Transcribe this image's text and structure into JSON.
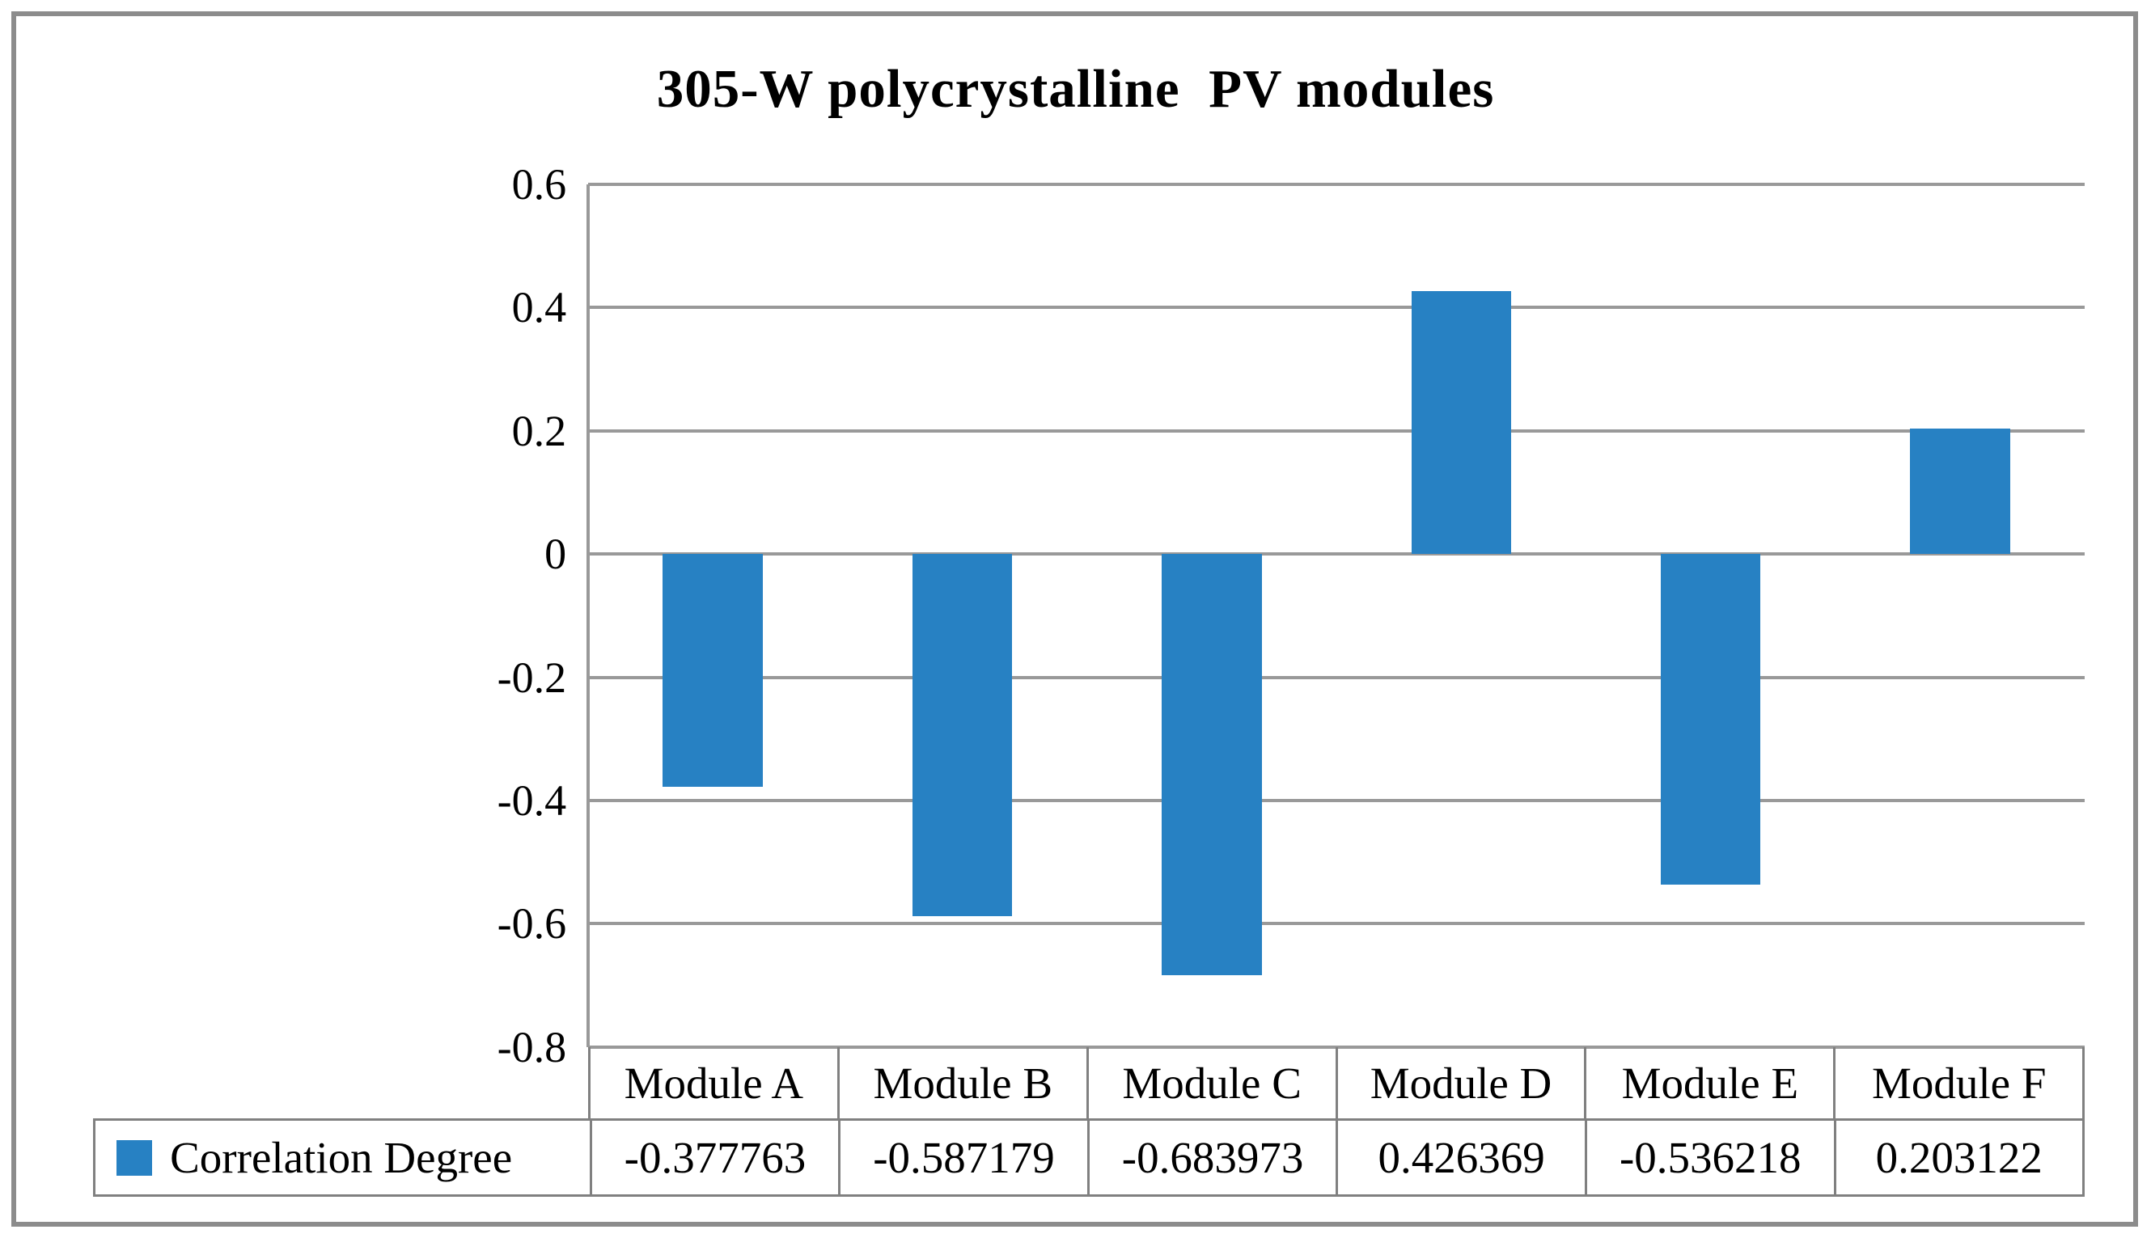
{
  "chart_data": {
    "type": "bar",
    "title": "305-W polycrystalline  PV modules",
    "categories": [
      "Module A",
      "Module B",
      "Module C",
      "Module D",
      "Module E",
      "Module F"
    ],
    "series": [
      {
        "name": "Correlation Degree",
        "values": [
          -0.377763,
          -0.587179,
          -0.683973,
          0.426369,
          -0.536218,
          0.203122
        ]
      }
    ],
    "value_labels": [
      "-0.377763",
      "-0.587179",
      "-0.683973",
      "0.426369",
      "-0.536218",
      "0.203122"
    ],
    "xlabel": "",
    "ylabel": "",
    "ylim": [
      -0.8,
      0.6
    ],
    "yticks": [
      0.6,
      0.4,
      0.2,
      0,
      -0.2,
      -0.4,
      -0.6,
      -0.8
    ],
    "ytick_labels": [
      "0.6",
      "0.4",
      "0.2",
      "0",
      "-0.2",
      "-0.4",
      "-0.6",
      "-0.8"
    ],
    "grid": true,
    "bar_width_fraction": 0.4,
    "bar_color": "#2781c3",
    "gridline_color": "#999999",
    "legend": {
      "label": "Correlation Degree",
      "swatch_color": "#2781c3",
      "position": "bottom-table-left"
    }
  },
  "colors": {
    "figure_border": "#8c8c8c",
    "table_border": "#808080",
    "text": "#000000",
    "background": "#ffffff"
  }
}
